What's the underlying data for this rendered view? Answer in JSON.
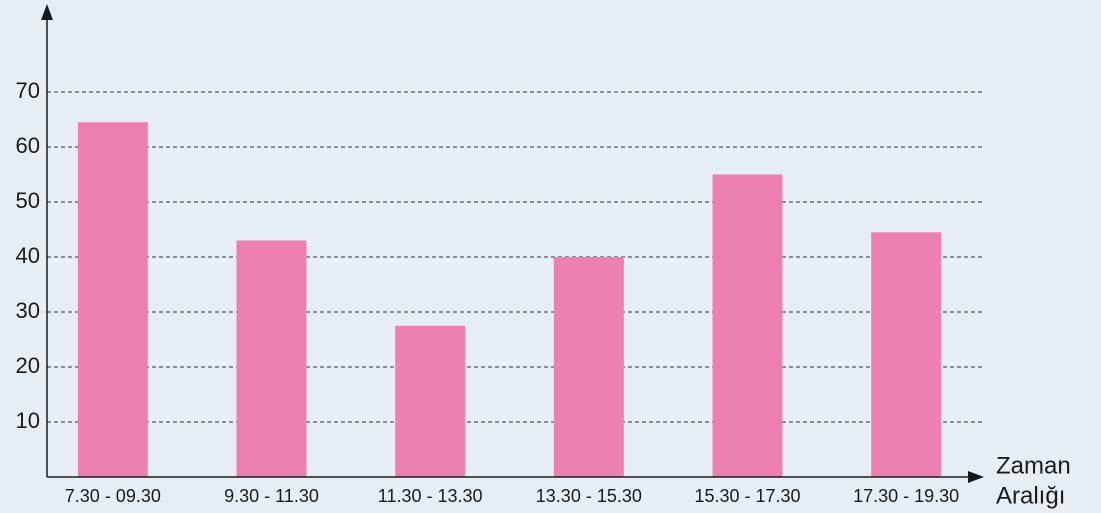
{
  "chart_data": {
    "type": "bar",
    "x_label": [
      "Zaman",
      "Aralığı"
    ],
    "categories": [
      "7.30 - 09.30",
      "9.30 - 11.30",
      "11.30 - 13.30",
      "13.30 - 15.30",
      "15.30 - 17.30",
      "17.30 - 19.30"
    ],
    "values": [
      64.5,
      43,
      27.5,
      40,
      55,
      44.5
    ],
    "color": "#ee80b1",
    "ylim": [
      0,
      84
    ],
    "yticks": [
      10,
      20,
      30,
      40,
      50,
      60,
      70
    ],
    "grid": true
  }
}
